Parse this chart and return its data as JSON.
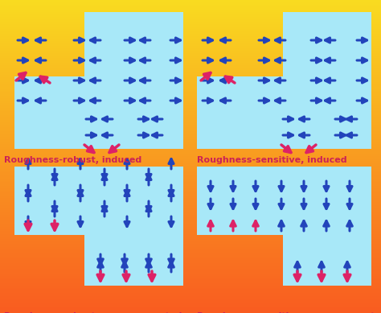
{
  "bg_color_top": "#F0B040",
  "bg_color": "#F0B040",
  "panel_color": "#A8E8F8",
  "title_color": "#CC2255",
  "blue_arrow": "#2244BB",
  "pink_arrow": "#DD2266",
  "titles": [
    "Roughness-robust, uncompensated",
    "Roughness-sensitive, uncompensated",
    "Roughness-robust, induced",
    "Roughness-sensitive, induced"
  ],
  "figsize": [
    4.74,
    3.89
  ],
  "dpi": 100
}
